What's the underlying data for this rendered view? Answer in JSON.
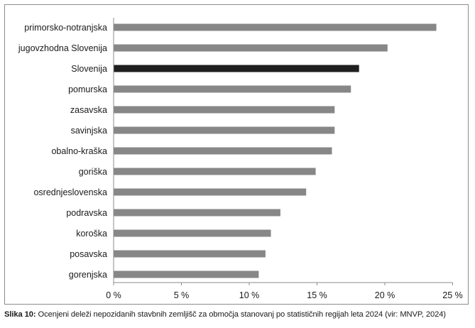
{
  "chart_data": {
    "type": "bar",
    "orientation": "horizontal",
    "categories": [
      "primorsko-notranjska",
      "jugovzhodna Slovenija",
      "Slovenija",
      "pomurska",
      "zasavska",
      "savinjska",
      "obalno-kraška",
      "goriška",
      "osrednjeslovenska",
      "podravska",
      "koroška",
      "posavska",
      "gorenjska"
    ],
    "values": [
      23.8,
      20.2,
      18.1,
      17.5,
      16.3,
      16.3,
      16.1,
      14.9,
      14.2,
      12.3,
      11.6,
      11.2,
      10.7
    ],
    "highlight_category": "Slovenija",
    "colors": {
      "bar": "#878787",
      "highlight": "#1f1f1f",
      "axis": "#8c8c8c"
    },
    "xlim": [
      0,
      25
    ],
    "xticks": [
      0,
      5,
      10,
      15,
      20,
      25
    ],
    "xtick_labels": [
      "0 %",
      "5 %",
      "10 %",
      "15 %",
      "20 %",
      "25 %"
    ],
    "grid": false,
    "legend": "none"
  },
  "caption": {
    "label": "Slika 10:",
    "text": " Ocenjeni deleži nepozidanih stavbnih zemljišč za območja stanovanj po statističnih regijah leta 2024 (vir: MNVP, 2024)"
  }
}
